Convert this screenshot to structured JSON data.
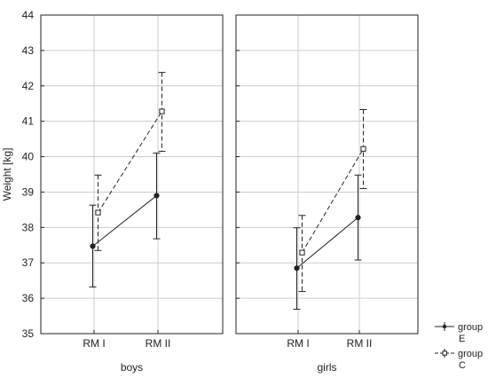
{
  "chart_data": {
    "type": "line",
    "ylabel": "Weight [kg]",
    "ylim": [
      35,
      44
    ],
    "yticks": [
      35,
      36,
      37,
      38,
      39,
      40,
      41,
      42,
      43,
      44
    ],
    "grid": true,
    "legend_position": "bottom-right",
    "panels": [
      {
        "label": "boys",
        "categories": [
          "RM I",
          "RM II"
        ],
        "series": [
          {
            "name_lines": [
              "group",
              "E"
            ],
            "style": "solid",
            "marker": "circle-filled",
            "color": "#222222",
            "values": [
              37.47,
              38.9
            ],
            "lower": [
              36.32,
              37.68
            ],
            "upper": [
              38.63,
              40.1
            ]
          },
          {
            "name_lines": [
              "group",
              "C"
            ],
            "style": "dashed",
            "marker": "square-open",
            "color": "#222222",
            "values": [
              38.42,
              41.28
            ],
            "lower": [
              37.35,
              40.15
            ],
            "upper": [
              39.48,
              42.38
            ]
          }
        ]
      },
      {
        "label": "girls",
        "categories": [
          "RM I",
          "RM II"
        ],
        "series": [
          {
            "name_lines": [
              "group",
              "E"
            ],
            "style": "solid",
            "marker": "circle-filled",
            "color": "#222222",
            "values": [
              36.85,
              38.28
            ],
            "lower": [
              35.69,
              37.08
            ],
            "upper": [
              37.99,
              39.48
            ]
          },
          {
            "name_lines": [
              "group",
              "C"
            ],
            "style": "dashed",
            "marker": "square-open",
            "color": "#222222",
            "values": [
              37.29,
              40.22
            ],
            "lower": [
              36.19,
              39.1
            ],
            "upper": [
              38.34,
              41.33
            ]
          }
        ]
      }
    ],
    "legend": [
      {
        "lines": [
          "group",
          "E"
        ],
        "style": "solid",
        "marker": "circle-filled"
      },
      {
        "lines": [
          "group",
          "C"
        ],
        "style": "dashed",
        "marker": "square-open"
      }
    ]
  }
}
